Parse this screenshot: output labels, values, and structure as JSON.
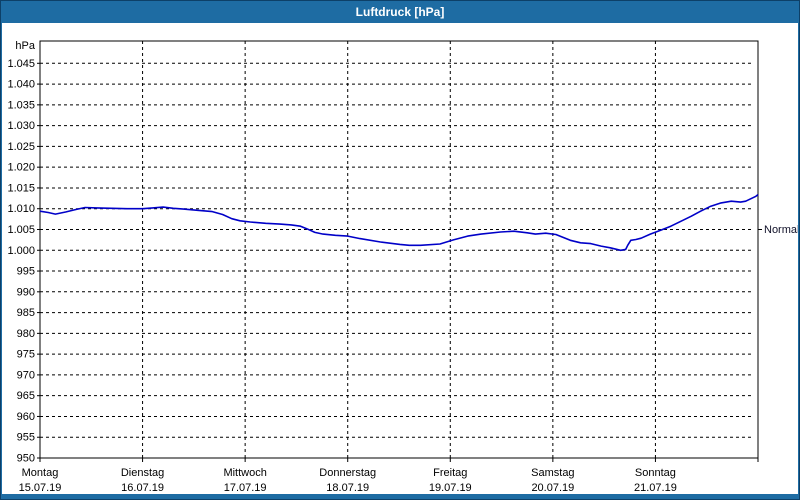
{
  "window": {
    "title": "Luftdruck [hPa]"
  },
  "colors": {
    "titlebar_bg": "#1e6ca3",
    "window_border": "#0d4068",
    "plot_bg": "#ffffff",
    "grid": "#000000",
    "line": "#0000c8",
    "title_text": "#ffffff",
    "label_text": "#000000",
    "normal_text": "#101028"
  },
  "chart_data": {
    "type": "line",
    "title": "Luftdruck [hPa]",
    "y_unit_label": "hPa",
    "ylim": [
      950,
      1045
    ],
    "grid": "dashed",
    "legend_position": "none",
    "y_ticks": [
      {
        "value": 1045,
        "label": "1.045"
      },
      {
        "value": 1040,
        "label": "1.040"
      },
      {
        "value": 1035,
        "label": "1.035"
      },
      {
        "value": 1030,
        "label": "1.030"
      },
      {
        "value": 1025,
        "label": "1.025"
      },
      {
        "value": 1020,
        "label": "1.020"
      },
      {
        "value": 1015,
        "label": "1.015"
      },
      {
        "value": 1010,
        "label": "1.010"
      },
      {
        "value": 1005,
        "label": "1.005"
      },
      {
        "value": 1000,
        "label": "1.000"
      },
      {
        "value": 995,
        "label": "995"
      },
      {
        "value": 990,
        "label": "990"
      },
      {
        "value": 985,
        "label": "985"
      },
      {
        "value": 980,
        "label": "980"
      },
      {
        "value": 975,
        "label": "975"
      },
      {
        "value": 970,
        "label": "970"
      },
      {
        "value": 965,
        "label": "965"
      },
      {
        "value": 960,
        "label": "960"
      },
      {
        "value": 955,
        "label": "955"
      },
      {
        "value": 950,
        "label": "950"
      }
    ],
    "x_days": [
      {
        "name": "Montag",
        "date": "15.07.19"
      },
      {
        "name": "Dienstag",
        "date": "16.07.19"
      },
      {
        "name": "Mittwoch",
        "date": "17.07.19"
      },
      {
        "name": "Donnerstag",
        "date": "18.07.19"
      },
      {
        "name": "Freitag",
        "date": "19.07.19"
      },
      {
        "name": "Samstag",
        "date": "20.07.19"
      },
      {
        "name": "Sonntag",
        "date": "21.07.19"
      }
    ],
    "normal_marker": {
      "label": "Normal",
      "value": 1005
    },
    "series": [
      {
        "name": "Luftdruck",
        "points": [
          [
            0.0,
            1009.4
          ],
          [
            0.08,
            1009.1
          ],
          [
            0.15,
            1008.7
          ],
          [
            0.25,
            1009.2
          ],
          [
            0.35,
            1009.8
          ],
          [
            0.44,
            1010.3
          ],
          [
            0.55,
            1010.2
          ],
          [
            0.7,
            1010.1
          ],
          [
            0.85,
            1010.0
          ],
          [
            1.0,
            1010.0
          ],
          [
            1.1,
            1010.2
          ],
          [
            1.2,
            1010.4
          ],
          [
            1.3,
            1010.1
          ],
          [
            1.4,
            1009.9
          ],
          [
            1.55,
            1009.6
          ],
          [
            1.68,
            1009.3
          ],
          [
            1.78,
            1008.6
          ],
          [
            1.87,
            1007.6
          ],
          [
            1.95,
            1007.1
          ],
          [
            2.05,
            1006.8
          ],
          [
            2.2,
            1006.5
          ],
          [
            2.34,
            1006.3
          ],
          [
            2.45,
            1006.1
          ],
          [
            2.54,
            1005.8
          ],
          [
            2.6,
            1005.2
          ],
          [
            2.68,
            1004.3
          ],
          [
            2.76,
            1003.9
          ],
          [
            2.88,
            1003.6
          ],
          [
            3.0,
            1003.4
          ],
          [
            3.12,
            1002.8
          ],
          [
            3.32,
            1002.0
          ],
          [
            3.51,
            1001.4
          ],
          [
            3.6,
            1001.2
          ],
          [
            3.71,
            1001.2
          ],
          [
            3.9,
            1001.5
          ],
          [
            4.03,
            1002.5
          ],
          [
            4.17,
            1003.4
          ],
          [
            4.3,
            1003.9
          ],
          [
            4.49,
            1004.4
          ],
          [
            4.62,
            1004.6
          ],
          [
            4.75,
            1004.2
          ],
          [
            4.83,
            1003.9
          ],
          [
            4.93,
            1004.1
          ],
          [
            5.03,
            1003.8
          ],
          [
            5.17,
            1002.4
          ],
          [
            5.27,
            1001.8
          ],
          [
            5.37,
            1001.6
          ],
          [
            5.47,
            1001.0
          ],
          [
            5.56,
            1000.6
          ],
          [
            5.66,
            1000.0
          ],
          [
            5.71,
            1000.2
          ],
          [
            5.73,
            1001.2
          ],
          [
            5.76,
            1002.4
          ],
          [
            5.81,
            1002.6
          ],
          [
            5.86,
            1002.9
          ],
          [
            5.95,
            1003.9
          ],
          [
            6.05,
            1004.8
          ],
          [
            6.15,
            1005.8
          ],
          [
            6.25,
            1007.0
          ],
          [
            6.35,
            1008.2
          ],
          [
            6.44,
            1009.4
          ],
          [
            6.54,
            1010.6
          ],
          [
            6.64,
            1011.4
          ],
          [
            6.74,
            1011.8
          ],
          [
            6.83,
            1011.6
          ],
          [
            6.88,
            1011.8
          ],
          [
            6.98,
            1013.0
          ],
          [
            7.0,
            1013.4
          ]
        ]
      }
    ]
  }
}
